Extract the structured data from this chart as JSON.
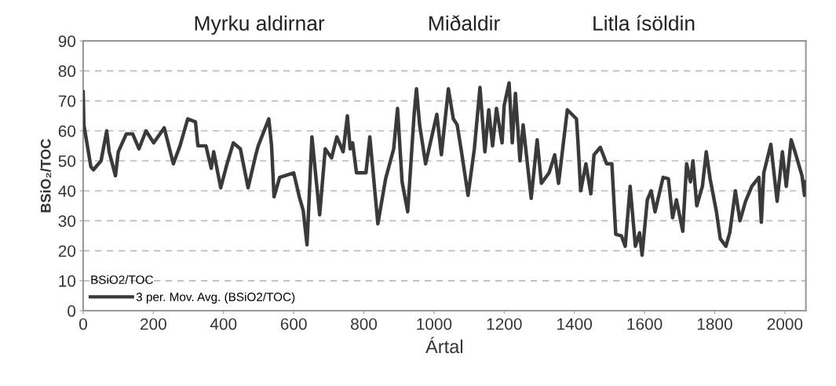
{
  "chart_data": {
    "type": "line",
    "xlabel": "Ártal",
    "ylabel": "BSiO₂/TOC",
    "annotations": [
      "Myrku aldirnar",
      "Miðaldir",
      "Litla ísöldin"
    ],
    "legend_title": "BSiO2/TOC",
    "series": [
      {
        "name": "3 per. Mov. Avg. (BSiO2/TOC)",
        "color": "#3a3a3a",
        "x": [
          0,
          2,
          22,
          29,
          51,
          67,
          74,
          92,
          100,
          123,
          141,
          159,
          179,
          201,
          231,
          257,
          276,
          298,
          320,
          327,
          350,
          365,
          372,
          392,
          410,
          428,
          448,
          470,
          492,
          499,
          529,
          537,
          544,
          560,
          600,
          616,
          627,
          638,
          652,
          674,
          690,
          708,
          723,
          741,
          753,
          761,
          768,
          779,
          806,
          817,
          840,
          862,
          885,
          896,
          909,
          925,
          943,
          950,
          959,
          976,
          1008,
          1021,
          1041,
          1055,
          1066,
          1077,
          1097,
          1115,
          1131,
          1145,
          1156,
          1167,
          1178,
          1194,
          1200,
          1214,
          1223,
          1232,
          1245,
          1254,
          1277,
          1294,
          1306,
          1328,
          1344,
          1355,
          1380,
          1406,
          1410,
          1418,
          1433,
          1447,
          1456,
          1474,
          1492,
          1507,
          1518,
          1534,
          1545,
          1559,
          1574,
          1586,
          1593,
          1608,
          1619,
          1630,
          1653,
          1668,
          1680,
          1691,
          1709,
          1720,
          1731,
          1738,
          1749,
          1765,
          1776,
          1787,
          1805,
          1816,
          1832,
          1843,
          1859,
          1872,
          1888,
          1906,
          1926,
          1933,
          1940,
          1960,
          1978,
          1993,
          2004,
          2018,
          2029,
          2049,
          2056,
          2060
        ],
        "values": [
          73,
          62,
          48,
          47,
          50,
          60,
          53,
          45,
          53,
          59,
          59,
          54,
          60,
          56,
          61,
          49,
          55,
          64,
          63,
          55,
          55,
          47.5,
          53,
          41,
          49,
          56,
          54,
          41,
          52,
          55,
          64,
          55,
          38,
          44.5,
          46,
          38,
          33.5,
          22,
          58,
          32,
          54,
          51,
          58,
          53,
          65,
          54,
          56,
          46,
          46,
          58,
          29,
          44,
          54,
          67.5,
          43,
          33,
          65,
          74,
          62,
          49,
          65.5,
          52,
          74,
          64,
          62,
          54,
          38.5,
          54,
          74.5,
          53,
          67,
          55,
          67.5,
          56,
          68.5,
          76,
          56,
          72.5,
          50,
          62,
          37.5,
          57,
          42.5,
          46,
          52,
          42.5,
          67,
          64,
          57,
          40,
          49,
          39,
          52,
          54.5,
          49,
          49,
          25.5,
          25,
          21.5,
          41.5,
          21.5,
          26,
          18.5,
          37,
          40,
          33,
          44.5,
          44,
          31,
          37,
          26.5,
          49,
          43,
          50,
          35,
          41.5,
          53,
          44,
          33,
          24,
          21.5,
          26,
          40,
          30,
          36.5,
          41.5,
          44.5,
          29.5,
          46,
          55.5,
          36.5,
          53,
          41.5,
          57,
          53,
          45,
          38.5,
          43
        ]
      }
    ],
    "xlim": [
      0,
      2060
    ],
    "xticks": [
      0,
      200,
      400,
      600,
      800,
      1000,
      1200,
      1400,
      1600,
      1800,
      2000
    ],
    "ylim": [
      0,
      90
    ],
    "yticks": [
      0,
      10,
      20,
      30,
      40,
      50,
      60,
      70,
      80,
      90
    ],
    "grid": "y",
    "legend": "bottom left",
    "line_style": "solid",
    "marker": "none"
  }
}
